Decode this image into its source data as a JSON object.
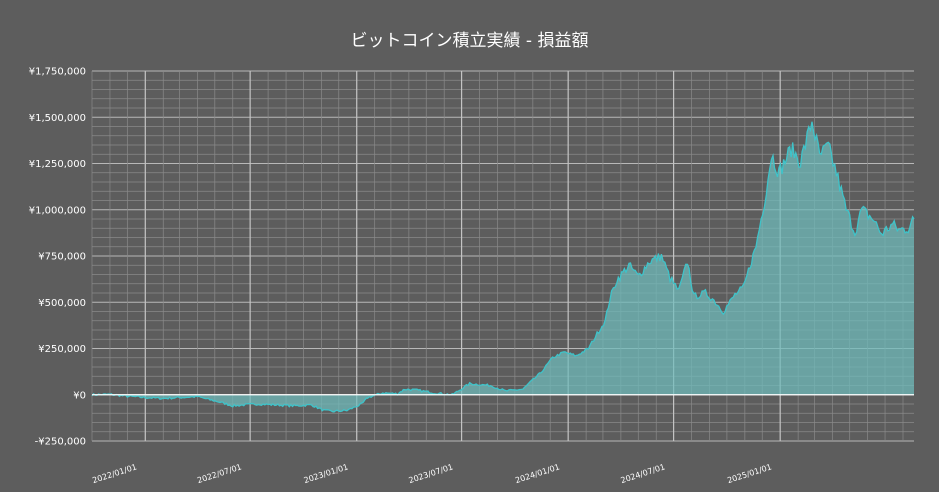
{
  "chart_data": {
    "type": "area",
    "title": "ビットコイン積立実績 - 損益額",
    "xlabel": "",
    "ylabel": "",
    "x_axis": "date",
    "xlim": [
      "2021-10-01",
      "2025-08-20"
    ],
    "ylim": [
      -250000,
      1750000
    ],
    "y_ticks": [
      -250000,
      0,
      250000,
      500000,
      750000,
      1000000,
      1250000,
      1500000,
      1750000
    ],
    "y_tick_labels": [
      "-¥250,000",
      "¥0",
      "¥250,000",
      "¥500,000",
      "¥750,000",
      "¥1,000,000",
      "¥1,250,000",
      "¥1,500,000",
      "¥1,750,000"
    ],
    "x_ticks": [
      "2022-01-01",
      "2022-07-01",
      "2023-01-01",
      "2023-07-01",
      "2024-01-01",
      "2024-07-01",
      "2025-01-01"
    ],
    "x_tick_labels": [
      "2022/01/01",
      "2022/07/01",
      "2023/01/01",
      "2023/07/01",
      "2024/01/01",
      "2024/07/01",
      "2025/01/01"
    ],
    "grid": true,
    "legend": "none",
    "colors": {
      "line": "#3fc3c9",
      "fill": "#6fbdbd",
      "background": "#5d5d5d",
      "grid": "#9a9a9a",
      "zero_line": "#ffffff",
      "text": "#ffffff"
    },
    "series": [
      {
        "x": [
          "2021-10-01",
          "2021-11-01",
          "2021-12-01",
          "2022-01-01",
          "2022-02-01",
          "2022-03-01",
          "2022-04-01",
          "2022-04-20",
          "2022-05-10",
          "2022-06-01",
          "2022-06-20",
          "2022-07-15",
          "2022-08-15",
          "2022-09-15",
          "2022-10-15",
          "2022-11-05",
          "2022-11-20",
          "2022-12-15",
          "2023-01-10",
          "2023-01-20",
          "2023-02-15",
          "2023-03-12",
          "2023-03-25",
          "2023-04-15",
          "2023-05-15",
          "2023-06-15",
          "2023-06-25",
          "2023-07-15",
          "2023-08-20",
          "2023-09-15",
          "2023-10-15",
          "2023-10-25",
          "2023-11-15",
          "2023-12-05",
          "2023-12-25",
          "2024-01-15",
          "2024-02-05",
          "2024-02-20",
          "2024-03-05",
          "2024-03-13",
          "2024-03-25",
          "2024-04-15",
          "2024-05-01",
          "2024-05-20",
          "2024-06-10",
          "2024-06-25",
          "2024-07-10",
          "2024-07-25",
          "2024-08-05",
          "2024-08-25",
          "2024-09-06",
          "2024-09-25",
          "2024-10-15",
          "2024-10-30",
          "2024-11-10",
          "2024-11-20",
          "2024-12-05",
          "2024-12-17",
          "2024-12-30",
          "2025-01-20",
          "2025-02-05",
          "2025-02-25",
          "2025-03-10",
          "2025-03-25",
          "2025-04-08",
          "2025-04-25",
          "2025-05-10",
          "2025-05-22",
          "2025-06-10",
          "2025-06-25",
          "2025-07-14",
          "2025-07-25",
          "2025-08-10",
          "2025-08-20"
        ],
        "y": [
          0,
          2000,
          -8000,
          -15000,
          -20000,
          -15000,
          -10000,
          -25000,
          -40000,
          -60000,
          -55000,
          -50000,
          -55000,
          -60000,
          -55000,
          -85000,
          -90000,
          -85000,
          -50000,
          -15000,
          10000,
          5000,
          30000,
          25000,
          10000,
          0,
          20000,
          60000,
          50000,
          20000,
          30000,
          60000,
          120000,
          200000,
          230000,
          210000,
          250000,
          330000,
          400000,
          520000,
          620000,
          700000,
          640000,
          720000,
          750000,
          630000,
          560000,
          720000,
          530000,
          550000,
          520000,
          450000,
          540000,
          580000,
          700000,
          800000,
          1050000,
          1300000,
          1200000,
          1330000,
          1260000,
          1480000,
          1290000,
          1340000,
          1200000,
          1000000,
          880000,
          1000000,
          950000,
          870000,
          920000,
          890000,
          900000,
          950000
        ]
      }
    ]
  }
}
